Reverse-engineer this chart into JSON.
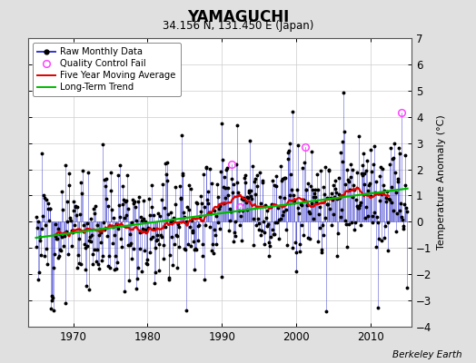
{
  "title": "YAMAGUCHI",
  "subtitle": "34.156 N, 131.450 E (Japan)",
  "ylabel": "Temperature Anomaly (°C)",
  "credit": "Berkeley Earth",
  "start_year": 1965,
  "end_year": 2014,
  "ylim": [
    -4,
    7
  ],
  "yticks": [
    -4,
    -3,
    -2,
    -1,
    0,
    1,
    2,
    3,
    4,
    5,
    6,
    7
  ],
  "xlim": [
    1964,
    2015.5
  ],
  "xticks": [
    1970,
    1980,
    1990,
    2000,
    2010
  ],
  "bg_color": "#e0e0e0",
  "plot_bg_color": "#ffffff",
  "line_color": "#3333cc",
  "dot_color": "#000000",
  "moving_avg_color": "#dd0000",
  "trend_color": "#00bb00",
  "qc_color": "#ff44ff",
  "seed": 12
}
